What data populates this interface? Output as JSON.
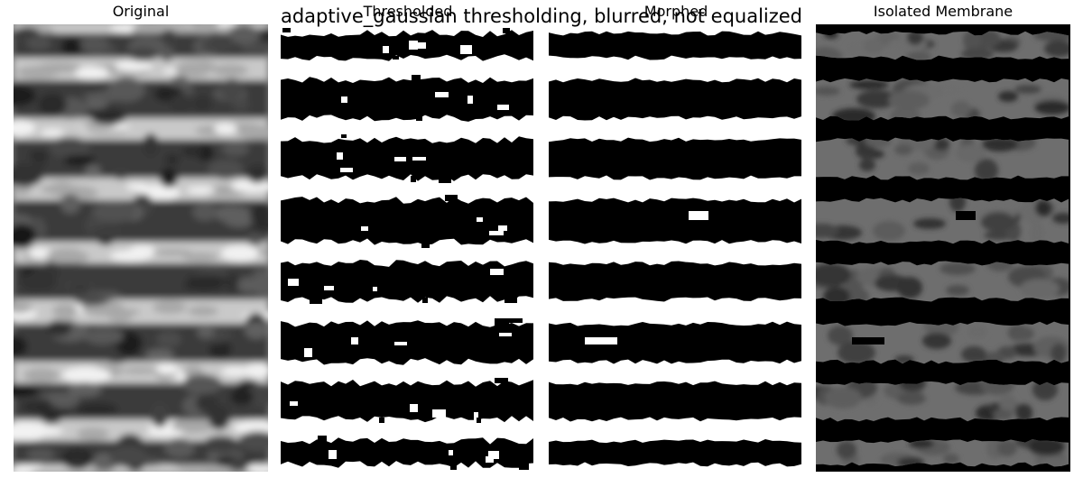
{
  "figure": {
    "suptitle": "adaptive_gaussian thresholding, blurred, not equalized"
  },
  "panels": [
    {
      "title": "Original"
    },
    {
      "title": "Thresholded"
    },
    {
      "title": "Morphed"
    },
    {
      "title": "Isolated Membrane"
    }
  ],
  "image_content": {
    "membrane_band_count": 8,
    "style": {
      "original": "grayscale blurred horizontal membrane stripes",
      "thresholded": "black/white binary mask",
      "morphed": "black/white cleaned mask",
      "isolated": "gray membrane texture on black"
    }
  }
}
